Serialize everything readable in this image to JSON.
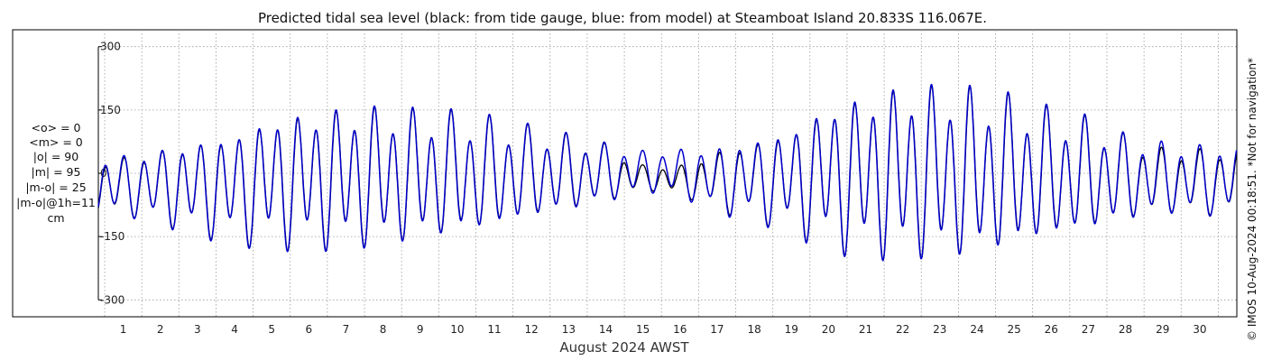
{
  "chart_data": {
    "type": "line",
    "title": "Predicted tidal sea level (black: from tide gauge, blue: from model) at Steamboat Island 20.833S 116.067E.",
    "xlabel": "August 2024 AWST",
    "ylabel": "",
    "x_ticks": [
      "1",
      "2",
      "3",
      "4",
      "5",
      "6",
      "7",
      "8",
      "9",
      "10",
      "11",
      "12",
      "13",
      "14",
      "15",
      "16",
      "17",
      "18",
      "19",
      "20",
      "21",
      "22",
      "23",
      "24",
      "25",
      "26",
      "27",
      "28",
      "29",
      "30"
    ],
    "y_ticks": [
      "300",
      "150",
      "0",
      "-150",
      "-300"
    ],
    "y_tick_values": [
      300,
      150,
      0,
      -150,
      -300
    ],
    "xlim_days": [
      0.33,
      31.0
    ],
    "ylim": [
      -340,
      340
    ],
    "grid": true,
    "x_units": "day of August 2024 (AWST)",
    "y_units": "cm",
    "series": [
      {
        "name": "from tide gauge",
        "color": "#000000",
        "x": [
          1,
          2,
          3,
          4,
          5,
          6,
          7,
          8,
          9,
          10,
          11,
          12,
          13,
          14,
          15,
          16,
          17,
          18,
          19,
          20,
          21,
          22,
          23,
          24,
          25,
          26,
          27,
          28,
          29,
          30
        ],
        "high": [
          40,
          60,
          80,
          100,
          140,
          150,
          160,
          160,
          150,
          145,
          130,
          110,
          90,
          70,
          20,
          20,
          55,
          80,
          110,
          170,
          190,
          210,
          210,
          200,
          180,
          150,
          130,
          90,
          60,
          60
        ],
        "low": [
          -100,
          -120,
          -145,
          -165,
          -175,
          -180,
          -180,
          -175,
          -160,
          -150,
          -135,
          -110,
          -90,
          -70,
          -40,
          -50,
          -90,
          -110,
          -140,
          -180,
          -200,
          -205,
          -205,
          -200,
          -180,
          -160,
          -140,
          -115,
          -95,
          -100
        ]
      },
      {
        "name": "from model",
        "color": "#0000cc",
        "x": [
          1,
          2,
          3,
          4,
          5,
          6,
          7,
          8,
          9,
          10,
          11,
          12,
          13,
          14,
          15,
          16,
          17,
          18,
          19,
          20,
          21,
          22,
          23,
          24,
          25,
          26,
          27,
          28,
          29,
          30
        ],
        "high": [
          45,
          62,
          82,
          102,
          142,
          152,
          162,
          162,
          152,
          146,
          131,
          111,
          92,
          72,
          55,
          60,
          65,
          85,
          112,
          172,
          192,
          212,
          212,
          202,
          182,
          152,
          132,
          92,
          75,
          70
        ],
        "low": [
          -100,
          -122,
          -147,
          -167,
          -177,
          -182,
          -182,
          -177,
          -162,
          -152,
          -137,
          -112,
          -92,
          -72,
          -45,
          -55,
          -95,
          -112,
          -142,
          -182,
          -202,
          -207,
          -207,
          -202,
          -182,
          -162,
          -142,
          -117,
          -97,
          -102
        ]
      }
    ]
  },
  "stats": {
    "lines": [
      "<o> = 0",
      "<m> = 0",
      "|o| = 90",
      "|m| = 95",
      "|m-o| = 25",
      "|m-o|@1h=11",
      "cm"
    ]
  },
  "copyright": "© IMOS 10-Aug-2024 00:18:51. *Not for navigation*"
}
